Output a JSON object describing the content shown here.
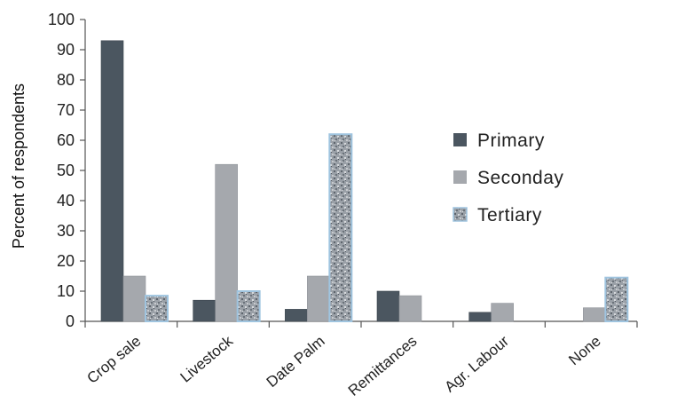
{
  "chart_data": {
    "type": "bar",
    "title": "",
    "xlabel": "",
    "ylabel": "Percent of respondents",
    "ylim": [
      0,
      100
    ],
    "yticks": [
      0,
      10,
      20,
      30,
      40,
      50,
      60,
      70,
      80,
      90,
      100
    ],
    "categories": [
      "Crop sale",
      "Livestock",
      "Date Palm",
      "Remittances",
      "Agr. Labour",
      "None"
    ],
    "series": [
      {
        "name": "Primary",
        "values": [
          93,
          7,
          4,
          10,
          3,
          0
        ]
      },
      {
        "name": "Seconday",
        "values": [
          15,
          52,
          15,
          8.5,
          6,
          4.5
        ]
      },
      {
        "name": "Tertiary",
        "values": [
          8.5,
          10,
          62,
          0,
          0,
          14.5
        ]
      }
    ],
    "legend_position": "right",
    "grid": false,
    "colors": {
      "primary": "#4b5660",
      "secondary": "#a5a8ad",
      "tertiary": "#8e949b",
      "tertiary_border": "#9fc4df",
      "axis": "#555555"
    }
  }
}
